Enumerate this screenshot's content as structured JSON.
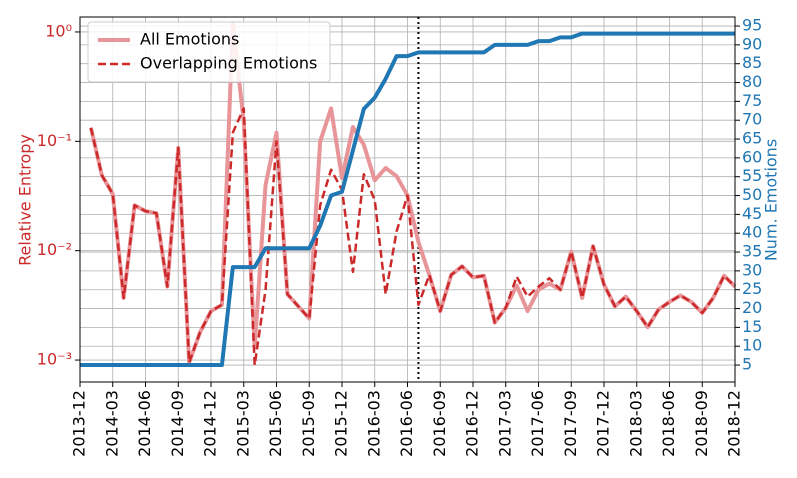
{
  "chart_data": {
    "type": "line",
    "ylabel": "Relative Entropy",
    "y2label": "Num. Emotions",
    "yscale": "log",
    "ylim": [
      0.00063,
      1.37
    ],
    "yticks": [
      {
        "value": 0.001,
        "label": "10⁻³"
      },
      {
        "value": 0.01,
        "label": "10⁻²"
      },
      {
        "value": 0.1,
        "label": "10⁻¹"
      },
      {
        "value": 1,
        "label": "10⁰"
      }
    ],
    "y2lim": [
      0.5,
      97.4
    ],
    "y2ticks": [
      5,
      10,
      15,
      20,
      25,
      30,
      35,
      40,
      45,
      50,
      55,
      60,
      65,
      70,
      75,
      80,
      85,
      90,
      95
    ],
    "grid": true,
    "legend": "upper left",
    "vline": "2016-07",
    "x": [
      "2013-12",
      "2014-01",
      "2014-02",
      "2014-03",
      "2014-04",
      "2014-05",
      "2014-06",
      "2014-07",
      "2014-08",
      "2014-09",
      "2014-10",
      "2014-11",
      "2014-12",
      "2015-01",
      "2015-02",
      "2015-03",
      "2015-04",
      "2015-05",
      "2015-06",
      "2015-07",
      "2015-08",
      "2015-09",
      "2015-10",
      "2015-11",
      "2015-12",
      "2016-01",
      "2016-02",
      "2016-03",
      "2016-04",
      "2016-05",
      "2016-06",
      "2016-07",
      "2016-08",
      "2016-09",
      "2016-10",
      "2016-11",
      "2016-12",
      "2017-01",
      "2017-02",
      "2017-03",
      "2017-04",
      "2017-05",
      "2017-06",
      "2017-07",
      "2017-08",
      "2017-09",
      "2017-10",
      "2017-11",
      "2017-12",
      "2018-01",
      "2018-02",
      "2018-03",
      "2018-04",
      "2018-05",
      "2018-06",
      "2018-07",
      "2018-08",
      "2018-09",
      "2018-10",
      "2018-11",
      "2018-12"
    ],
    "xticks": [
      "2013-12",
      "2014-03",
      "2014-06",
      "2014-09",
      "2014-12",
      "2015-03",
      "2015-06",
      "2015-09",
      "2015-12",
      "2016-03",
      "2016-06",
      "2016-09",
      "2016-12",
      "2017-03",
      "2017-06",
      "2017-09",
      "2017-12",
      "2018-03",
      "2018-06",
      "2018-09",
      "2018-12"
    ],
    "series": [
      {
        "name": "All Emotions",
        "color": "#e8959a",
        "linestyle": "solid",
        "width": 4,
        "values": [
          null,
          0.133,
          0.049,
          0.033,
          0.0037,
          0.026,
          0.023,
          0.022,
          0.0047,
          0.087,
          0.00095,
          0.0018,
          0.0028,
          0.0032,
          1.2,
          0.15,
          0.0013,
          0.04,
          0.12,
          0.004,
          0.0031,
          0.0024,
          0.1,
          0.2,
          0.046,
          0.135,
          0.093,
          0.044,
          0.057,
          0.048,
          0.032,
          0.012,
          0.006,
          0.0028,
          0.006,
          0.0072,
          0.0057,
          0.0059,
          0.0022,
          0.003,
          0.0048,
          0.0028,
          0.0044,
          0.005,
          0.0044,
          0.0098,
          0.0037,
          0.011,
          0.0049,
          0.0031,
          0.0038,
          0.0028,
          0.002,
          0.0029,
          0.0034,
          0.0039,
          0.0034,
          0.0027,
          0.0037,
          0.0059,
          0.0047
        ]
      },
      {
        "name": "Overlapping Emotions",
        "color": "#cc2a2a",
        "linestyle": "dashed",
        "width": 2.5,
        "values": [
          null,
          0.133,
          0.049,
          0.033,
          0.0037,
          0.026,
          0.023,
          0.022,
          0.0047,
          0.087,
          0.00095,
          0.0018,
          0.0028,
          0.0032,
          0.12,
          0.2,
          0.0009,
          0.0044,
          0.1,
          0.004,
          0.0031,
          0.0024,
          0.026,
          0.055,
          0.036,
          0.0064,
          0.05,
          0.029,
          0.004,
          0.015,
          0.032,
          0.0032,
          0.006,
          0.0028,
          0.006,
          0.0072,
          0.0057,
          0.0059,
          0.0022,
          0.003,
          0.0058,
          0.0038,
          0.0047,
          0.0056,
          0.0044,
          0.0098,
          0.0037,
          0.011,
          0.0049,
          0.0031,
          0.0038,
          0.0028,
          0.002,
          0.0029,
          0.0034,
          0.0039,
          0.0034,
          0.0027,
          0.0037,
          0.0059,
          0.0047
        ]
      },
      {
        "color": "#1f77b4",
        "linestyle": "solid",
        "width": 4,
        "axis": "y2",
        "values": [
          5,
          5,
          5,
          5,
          5,
          5,
          5,
          5,
          5,
          5,
          5,
          5,
          5,
          5,
          31,
          31,
          31,
          36,
          36,
          36,
          36,
          36,
          42,
          50,
          51,
          62,
          73,
          76,
          81,
          87,
          87,
          88,
          88,
          88,
          88,
          88,
          88,
          88,
          90,
          90,
          90,
          90,
          91,
          91,
          92,
          92,
          93,
          93,
          93,
          93,
          93,
          93,
          93,
          93,
          93,
          93,
          93,
          93,
          93,
          93,
          93
        ]
      }
    ]
  }
}
